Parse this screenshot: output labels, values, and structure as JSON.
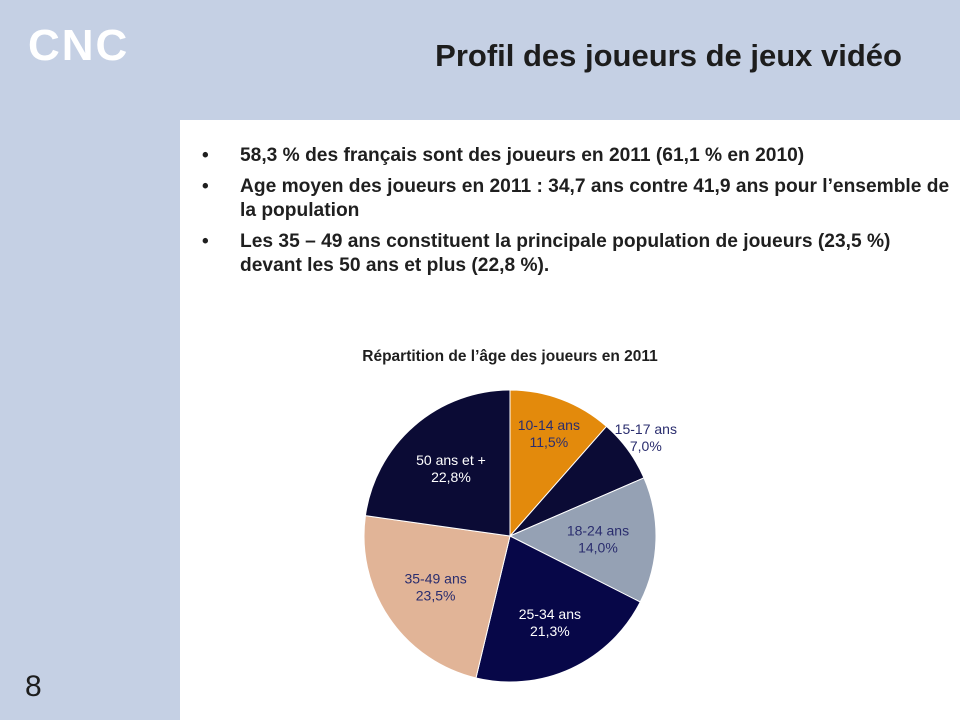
{
  "slide": {
    "logo": "CNC",
    "title": "Profil des joueurs de jeux vidéo",
    "bullets": [
      "58,3 % des français sont des joueurs en 2011 (61,1 % en 2010)",
      "Age moyen des joueurs en 2011 : 34,7 ans contre 41,9 ans pour l’ensemble de la population",
      "Les 35 – 49 ans constituent la principale population de joueurs (23,5 %) devant les 50 ans et plus (22,8 %)."
    ],
    "page_number": "8"
  },
  "chart_data": {
    "type": "pie",
    "title": "Répartition de l’âge des joueurs en 2011",
    "start_angle": "12 o'clock, clockwise",
    "slices": [
      {
        "label": "10-14 ans",
        "value": 11.5,
        "value_label": "11,5%",
        "color": "#e38a0c",
        "label_color": "#2a2d6e"
      },
      {
        "label": "15-17 ans",
        "value": 7.0,
        "value_label": "7,0%",
        "color": "#0b0b35",
        "label_color": "#2a2d6e"
      },
      {
        "label": "18-24 ans",
        "value": 14.0,
        "value_label": "14,0%",
        "color": "#95a1b4",
        "label_color": "#2a2d6e"
      },
      {
        "label": "25-34 ans",
        "value": 21.3,
        "value_label": "21,3%",
        "color": "#070748",
        "label_color": "#ffffff"
      },
      {
        "label": "35-49 ans",
        "value": 23.5,
        "value_label": "23,5%",
        "color": "#e1b497",
        "label_color": "#2a2d6e"
      },
      {
        "label": "50 ans et +",
        "value": 22.8,
        "value_label": "22,8%",
        "color": "#0b0b35",
        "label_color": "#ffffff"
      }
    ]
  }
}
